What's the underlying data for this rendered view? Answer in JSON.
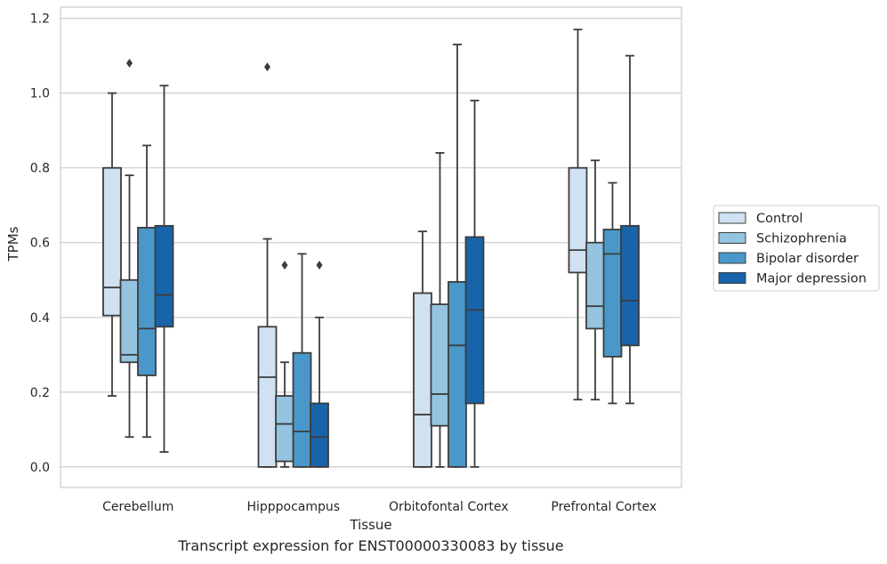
{
  "caption": "Transcript expression for ENST00000330083 by tissue",
  "chart_data": {
    "type": "boxplot",
    "xlabel": "Tissue",
    "ylabel": "TPMs",
    "ylim": [
      -0.055,
      1.23
    ],
    "yticks": [
      "0.0",
      "0.2",
      "0.4",
      "0.6",
      "0.8",
      "1.0",
      "1.2"
    ],
    "grid": "horizontal",
    "legend_position": "right",
    "categories": [
      "Cerebellum",
      "Hipppocampus",
      "Orbitofontal Cortex",
      "Prefrontal Cortex"
    ],
    "series": [
      {
        "name": "Control",
        "color": "#d0e1f2",
        "boxes": [
          {
            "whisker_low": 0.19,
            "q1": 0.405,
            "median": 0.48,
            "q3": 0.8,
            "whisker_high": 1.0,
            "outliers": []
          },
          {
            "whisker_low": 0.0,
            "q1": 0.0,
            "median": 0.24,
            "q3": 0.375,
            "whisker_high": 0.61,
            "outliers": [
              1.07
            ]
          },
          {
            "whisker_low": 0.0,
            "q1": 0.0,
            "median": 0.14,
            "q3": 0.465,
            "whisker_high": 0.63,
            "outliers": []
          },
          {
            "whisker_low": 0.18,
            "q1": 0.52,
            "median": 0.58,
            "q3": 0.8,
            "whisker_high": 1.17,
            "outliers": []
          }
        ]
      },
      {
        "name": "Schizophrenia",
        "color": "#94c4df",
        "boxes": [
          {
            "whisker_low": 0.08,
            "q1": 0.28,
            "median": 0.3,
            "q3": 0.5,
            "whisker_high": 0.78,
            "outliers": [
              1.08
            ]
          },
          {
            "whisker_low": 0.0,
            "q1": 0.015,
            "median": 0.115,
            "q3": 0.19,
            "whisker_high": 0.28,
            "outliers": [
              0.54
            ]
          },
          {
            "whisker_low": 0.0,
            "q1": 0.11,
            "median": 0.195,
            "q3": 0.435,
            "whisker_high": 0.84,
            "outliers": []
          },
          {
            "whisker_low": 0.18,
            "q1": 0.37,
            "median": 0.43,
            "q3": 0.6,
            "whisker_high": 0.82,
            "outliers": []
          }
        ]
      },
      {
        "name": "Bipolar disorder",
        "color": "#4a98c9",
        "boxes": [
          {
            "whisker_low": 0.08,
            "q1": 0.245,
            "median": 0.37,
            "q3": 0.64,
            "whisker_high": 0.86,
            "outliers": []
          },
          {
            "whisker_low": 0.0,
            "q1": 0.0,
            "median": 0.095,
            "q3": 0.305,
            "whisker_high": 0.57,
            "outliers": []
          },
          {
            "whisker_low": 0.0,
            "q1": 0.0,
            "median": 0.325,
            "q3": 0.495,
            "whisker_high": 1.13,
            "outliers": []
          },
          {
            "whisker_low": 0.17,
            "q1": 0.295,
            "median": 0.57,
            "q3": 0.635,
            "whisker_high": 0.76,
            "outliers": []
          }
        ]
      },
      {
        "name": "Major depression",
        "color": "#1764ab",
        "boxes": [
          {
            "whisker_low": 0.04,
            "q1": 0.375,
            "median": 0.46,
            "q3": 0.645,
            "whisker_high": 1.02,
            "outliers": []
          },
          {
            "whisker_low": 0.0,
            "q1": 0.0,
            "median": 0.08,
            "q3": 0.17,
            "whisker_high": 0.4,
            "outliers": [
              0.54
            ]
          },
          {
            "whisker_low": 0.0,
            "q1": 0.17,
            "median": 0.42,
            "q3": 0.615,
            "whisker_high": 0.98,
            "outliers": []
          },
          {
            "whisker_low": 0.17,
            "q1": 0.325,
            "median": 0.445,
            "q3": 0.645,
            "whisker_high": 1.1,
            "outliers": []
          }
        ]
      }
    ]
  }
}
